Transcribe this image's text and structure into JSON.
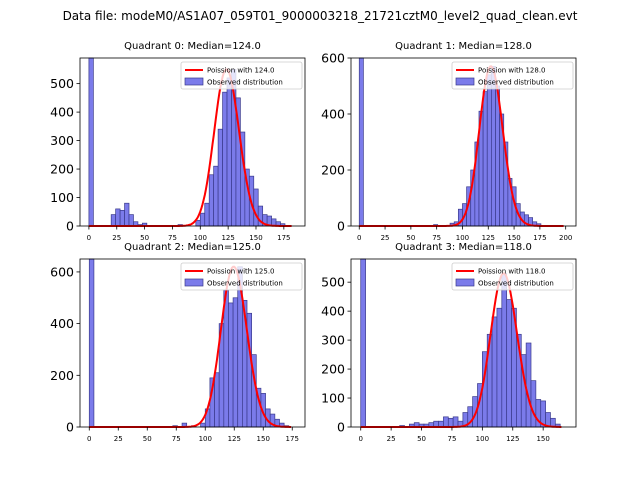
{
  "suptitle": "Data file: modeM0/AS1A07_059T01_9000003218_21721cztM0_level2_quad_clean.evt",
  "legend": {
    "poisson_prefix": "Poission with ",
    "observed_label": "Observed distribution",
    "poisson_color": "#ff0000",
    "bar_fill": "#7b7bea",
    "bar_edge": "#3a3a8c"
  },
  "chart_data": [
    {
      "type": "bar",
      "title": "Quadrant 0: Median=124.0",
      "median": "124.0",
      "mean": 124,
      "xlim": [
        -8,
        194
      ],
      "ylim": [
        0,
        590
      ],
      "xticks": [
        0,
        25,
        50,
        75,
        100,
        125,
        150,
        175
      ],
      "yticks": [
        0,
        100,
        200,
        300,
        400,
        500
      ],
      "bin_width": 4,
      "bins": [
        [
          0,
          590
        ],
        [
          20,
          40
        ],
        [
          24,
          60
        ],
        [
          28,
          55
        ],
        [
          32,
          80
        ],
        [
          36,
          40
        ],
        [
          40,
          15
        ],
        [
          44,
          5
        ],
        [
          48,
          10
        ],
        [
          80,
          5
        ],
        [
          96,
          20
        ],
        [
          100,
          45
        ],
        [
          104,
          80
        ],
        [
          108,
          180
        ],
        [
          112,
          210
        ],
        [
          116,
          340
        ],
        [
          120,
          470
        ],
        [
          124,
          520
        ],
        [
          128,
          550
        ],
        [
          132,
          450
        ],
        [
          136,
          330
        ],
        [
          140,
          200
        ],
        [
          144,
          175
        ],
        [
          148,
          130
        ],
        [
          152,
          70
        ],
        [
          156,
          40
        ],
        [
          160,
          35
        ],
        [
          164,
          25
        ],
        [
          168,
          15
        ],
        [
          172,
          8
        ]
      ],
      "legend_position": "upper right"
    },
    {
      "type": "bar",
      "title": "Quadrant 1: Median=128.0",
      "median": "128.0",
      "mean": 128,
      "xlim": [
        -8,
        210
      ],
      "ylim": [
        0,
        600
      ],
      "xticks": [
        0,
        25,
        50,
        75,
        100,
        125,
        150,
        175,
        200
      ],
      "yticks": [
        0,
        200,
        400,
        600
      ],
      "bin_width": 4,
      "bins": [
        [
          0,
          600
        ],
        [
          72,
          5
        ],
        [
          88,
          10
        ],
        [
          92,
          15
        ],
        [
          96,
          60
        ],
        [
          100,
          80
        ],
        [
          104,
          140
        ],
        [
          108,
          200
        ],
        [
          112,
          300
        ],
        [
          116,
          410
        ],
        [
          120,
          480
        ],
        [
          124,
          540
        ],
        [
          128,
          570
        ],
        [
          132,
          500
        ],
        [
          136,
          400
        ],
        [
          140,
          300
        ],
        [
          144,
          170
        ],
        [
          148,
          140
        ],
        [
          152,
          80
        ],
        [
          156,
          50
        ],
        [
          160,
          40
        ],
        [
          164,
          30
        ],
        [
          168,
          15
        ],
        [
          172,
          8
        ]
      ],
      "legend_position": "upper right"
    },
    {
      "type": "bar",
      "title": "Quadrant 2: Median=125.0",
      "median": "125.0",
      "mean": 125,
      "xlim": [
        -8,
        186
      ],
      "ylim": [
        0,
        650
      ],
      "xticks": [
        0,
        25,
        50,
        75,
        100,
        125,
        150,
        175
      ],
      "yticks": [
        0,
        200,
        400,
        600
      ],
      "bin_width": 4,
      "bins": [
        [
          0,
          650
        ],
        [
          72,
          5
        ],
        [
          80,
          15
        ],
        [
          88,
          5
        ],
        [
          96,
          15
        ],
        [
          100,
          70
        ],
        [
          104,
          190
        ],
        [
          108,
          210
        ],
        [
          112,
          400
        ],
        [
          116,
          530
        ],
        [
          120,
          480
        ],
        [
          124,
          500
        ],
        [
          128,
          620
        ],
        [
          132,
          490
        ],
        [
          136,
          440
        ],
        [
          140,
          280
        ],
        [
          144,
          150
        ],
        [
          148,
          130
        ],
        [
          152,
          70
        ],
        [
          156,
          50
        ],
        [
          160,
          30
        ],
        [
          164,
          15
        ],
        [
          168,
          5
        ]
      ],
      "legend_position": "upper right"
    },
    {
      "type": "bar",
      "title": "Quadrant 3: Median=118.0",
      "median": "118.0",
      "mean": 118,
      "xlim": [
        -8,
        177
      ],
      "ylim": [
        0,
        580
      ],
      "xticks": [
        0,
        25,
        50,
        75,
        100,
        125,
        150
      ],
      "yticks": [
        0,
        100,
        200,
        300,
        400,
        500
      ],
      "bin_width": 4,
      "bins": [
        [
          0,
          580
        ],
        [
          32,
          5
        ],
        [
          40,
          10
        ],
        [
          44,
          15
        ],
        [
          48,
          10
        ],
        [
          52,
          10
        ],
        [
          56,
          15
        ],
        [
          60,
          20
        ],
        [
          64,
          20
        ],
        [
          68,
          35
        ],
        [
          72,
          30
        ],
        [
          76,
          35
        ],
        [
          80,
          20
        ],
        [
          84,
          50
        ],
        [
          88,
          70
        ],
        [
          92,
          105
        ],
        [
          96,
          150
        ],
        [
          100,
          260
        ],
        [
          104,
          320
        ],
        [
          108,
          380
        ],
        [
          112,
          410
        ],
        [
          116,
          530
        ],
        [
          120,
          440
        ],
        [
          124,
          410
        ],
        [
          128,
          320
        ],
        [
          132,
          250
        ],
        [
          136,
          290
        ],
        [
          140,
          160
        ],
        [
          144,
          95
        ],
        [
          148,
          90
        ],
        [
          152,
          50
        ],
        [
          156,
          30
        ],
        [
          160,
          10
        ]
      ],
      "legend_position": "upper right"
    }
  ]
}
